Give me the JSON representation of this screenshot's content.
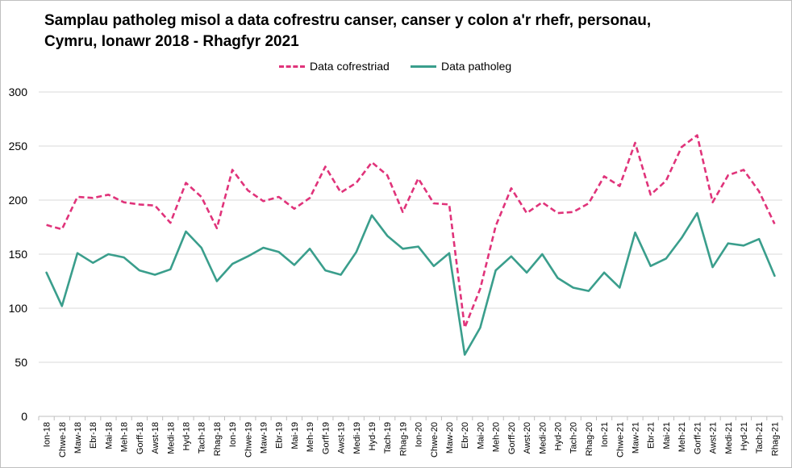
{
  "chart_data": {
    "type": "line",
    "title": "Samplau patholeg misol a data cofrestru canser, canser y colon a'r rhefr, personau, Cymru, Ionawr 2018 - Rhagfyr 2021",
    "title_lines": [
      "Samplau patholeg misol a data cofrestru canser, canser y colon a'r rhefr, personau,",
      "Cymru, Ionawr 2018 - Rhagfyr 2021"
    ],
    "xlabel": "",
    "ylabel": "",
    "ylim": [
      0,
      300
    ],
    "yticks": [
      0,
      50,
      100,
      150,
      200,
      250,
      300
    ],
    "grid": true,
    "legend_position": "top-center",
    "categories": [
      "Ion-18",
      "Chwe-18",
      "Maw-18",
      "Ebr-18",
      "Mai-18",
      "Meh-18",
      "Gorff-18",
      "Awst-18",
      "Medi-18",
      "Hyd-18",
      "Tach-18",
      "Rhag-18",
      "Ion-19",
      "Chwe-19",
      "Maw-19",
      "Ebr-19",
      "Mai-19",
      "Meh-19",
      "Gorff-19",
      "Awst-19",
      "Medi-19",
      "Hyd-19",
      "Tach-19",
      "Rhag-19",
      "Ion-20",
      "Chwe-20",
      "Maw-20",
      "Ebr-20",
      "Mai-20",
      "Meh-20",
      "Gorff-20",
      "Awst-20",
      "Medi-20",
      "Hyd-20",
      "Tach-20",
      "Rhag-20",
      "Ion-21",
      "Chwe-21",
      "Maw-21",
      "Ebr-21",
      "Mai-21",
      "Meh-21",
      "Gorff-21",
      "Awst-21",
      "Medi-21",
      "Hyd-21",
      "Tach-21",
      "Rhag-21"
    ],
    "series": [
      {
        "name": "Data cofrestriad",
        "color": "#e0337a",
        "style": "dashed",
        "values": [
          177,
          173,
          203,
          202,
          205,
          198,
          196,
          195,
          179,
          216,
          203,
          174,
          228,
          209,
          199,
          203,
          192,
          202,
          231,
          207,
          216,
          235,
          223,
          189,
          220,
          197,
          196,
          82,
          118,
          176,
          211,
          188,
          198,
          188,
          189,
          197,
          222,
          213,
          253,
          205,
          218,
          249,
          260,
          198,
          223,
          228,
          208,
          178
        ]
      },
      {
        "name": "Data patholeg",
        "color": "#3a9e8c",
        "style": "solid",
        "values": [
          133,
          102,
          151,
          142,
          150,
          147,
          135,
          131,
          136,
          171,
          156,
          125,
          141,
          148,
          156,
          152,
          140,
          155,
          135,
          131,
          152,
          186,
          167,
          155,
          157,
          139,
          151,
          57,
          82,
          135,
          148,
          133,
          150,
          128,
          119,
          116,
          133,
          119,
          170,
          139,
          146,
          165,
          188,
          138,
          160,
          158,
          164,
          130
        ]
      }
    ]
  }
}
